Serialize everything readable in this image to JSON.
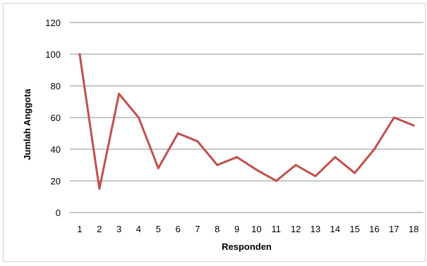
{
  "chart_data": {
    "type": "line",
    "title": "",
    "xlabel": "Responden",
    "ylabel": "Jumlah Anggota",
    "categories": [
      "1",
      "2",
      "3",
      "4",
      "5",
      "6",
      "7",
      "8",
      "9",
      "10",
      "11",
      "12",
      "13",
      "14",
      "15",
      "16",
      "17",
      "18"
    ],
    "series": [
      {
        "values": [
          100,
          15,
          75,
          60,
          28,
          50,
          45,
          30,
          35,
          27,
          20,
          30,
          23,
          35,
          25,
          40,
          60,
          55
        ],
        "color": "#c0504d"
      }
    ],
    "ylim": [
      0,
      120
    ],
    "yticks": [
      "0",
      "20",
      "40",
      "60",
      "80",
      "100",
      "120"
    ],
    "grid": true,
    "legend": "none"
  }
}
